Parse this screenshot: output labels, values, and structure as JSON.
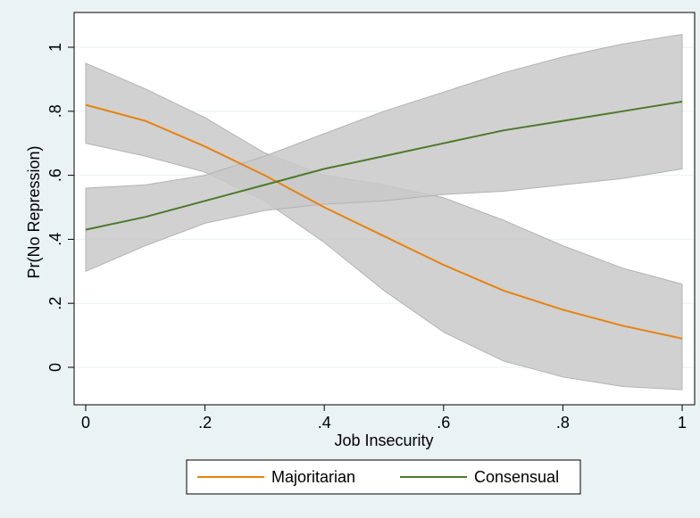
{
  "chart_data": {
    "type": "line",
    "title": "",
    "xlabel": "Job Insecurity",
    "ylabel": "Pr(No Repression)",
    "xlim": [
      0,
      1
    ],
    "ylim": [
      -0.07,
      1.07
    ],
    "x_ticks": [
      {
        "value": 0,
        "label": "0"
      },
      {
        "value": 0.2,
        "label": ".2"
      },
      {
        "value": 0.4,
        "label": ".4"
      },
      {
        "value": 0.6,
        "label": ".6"
      },
      {
        "value": 0.8,
        "label": ".8"
      },
      {
        "value": 1,
        "label": "1"
      }
    ],
    "y_ticks": [
      {
        "value": 0,
        "label": "0"
      },
      {
        "value": 0.2,
        "label": ".2"
      },
      {
        "value": 0.4,
        "label": ".4"
      },
      {
        "value": 0.6,
        "label": ".6"
      },
      {
        "value": 0.8,
        "label": ".8"
      },
      {
        "value": 1,
        "label": "1"
      }
    ],
    "grid": "horizontal",
    "legend_position": "bottom",
    "x": [
      0,
      0.1,
      0.2,
      0.3,
      0.4,
      0.5,
      0.6,
      0.7,
      0.8,
      0.9,
      1.0
    ],
    "series": [
      {
        "name": "Majoritarian",
        "color": "#e8820c",
        "values": [
          0.82,
          0.77,
          0.69,
          0.6,
          0.5,
          0.41,
          0.32,
          0.24,
          0.18,
          0.13,
          0.09
        ],
        "ci_lower": [
          0.7,
          0.66,
          0.61,
          0.52,
          0.39,
          0.24,
          0.11,
          0.02,
          -0.03,
          -0.06,
          -0.07
        ],
        "ci_upper": [
          0.95,
          0.87,
          0.78,
          0.67,
          0.6,
          0.57,
          0.53,
          0.46,
          0.38,
          0.31,
          0.26
        ]
      },
      {
        "name": "Consensual",
        "color": "#4b7a2a",
        "values": [
          0.43,
          0.47,
          0.52,
          0.57,
          0.62,
          0.66,
          0.7,
          0.74,
          0.77,
          0.8,
          0.83
        ],
        "ci_lower": [
          0.3,
          0.38,
          0.45,
          0.49,
          0.51,
          0.52,
          0.54,
          0.55,
          0.57,
          0.59,
          0.62
        ],
        "ci_upper": [
          0.56,
          0.57,
          0.6,
          0.66,
          0.73,
          0.8,
          0.86,
          0.92,
          0.97,
          1.01,
          1.04
        ]
      }
    ],
    "ci_fill_color": "#c9c9c9",
    "ci_edge_color": "#b3b3b3",
    "legend": [
      {
        "label": "Majoritarian",
        "color": "#e8820c"
      },
      {
        "label": "Consensual",
        "color": "#4b7a2a"
      }
    ]
  }
}
